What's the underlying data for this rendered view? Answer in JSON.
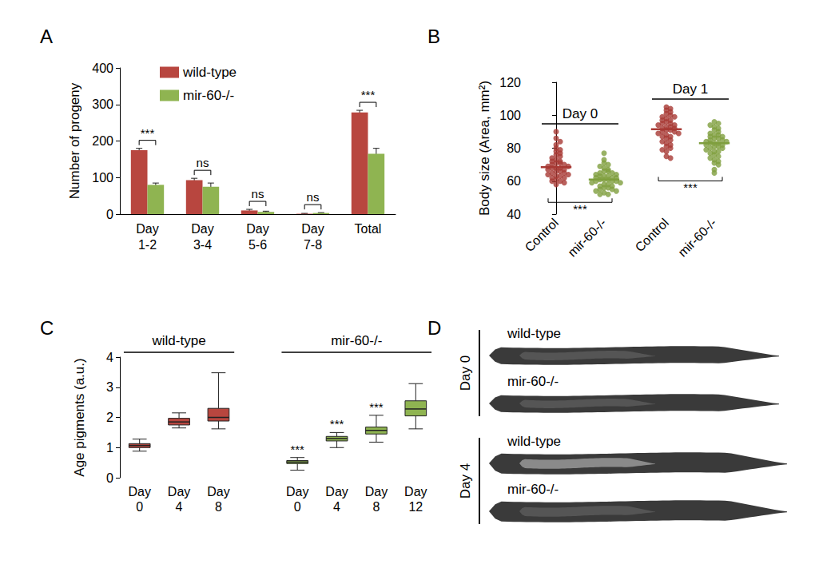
{
  "chart_data": [
    {
      "type": "bar",
      "title": "A",
      "ylabel": "Number of progeny",
      "categories": [
        "Day\n1-2",
        "Day\n3-4",
        "Day\n5-6",
        "Day\n7-8",
        "Total"
      ],
      "series": [
        {
          "name": "wild-type",
          "color": "#b8463f",
          "values": [
            175,
            93,
            10,
            1,
            278
          ],
          "errors": [
            5,
            5,
            3,
            1,
            6
          ]
        },
        {
          "name": "mir-60-/-",
          "color": "#8fb451",
          "values": [
            80,
            75,
            6,
            3,
            165
          ],
          "errors": [
            5,
            10,
            2,
            1,
            15
          ]
        }
      ],
      "annotations": [
        "***",
        "ns",
        "ns",
        "ns",
        "***"
      ],
      "ylim": [
        0,
        400
      ],
      "yticks": [
        0,
        100,
        200,
        300,
        400
      ],
      "grid": false,
      "legend": "upper left"
    },
    {
      "type": "scatter",
      "title": "B",
      "ylabel": "Body size (Area, mm²)",
      "ylim": [
        40,
        120
      ],
      "yticks": [
        40,
        60,
        80,
        100,
        120
      ],
      "grid": false,
      "groups": [
        {
          "label": "Day 0",
          "annotation": "***",
          "series": [
            {
              "name": "Control",
              "color": "#a83a35",
              "values": [
                90,
                86,
                84,
                82,
                80,
                79,
                78,
                77,
                76,
                75,
                74,
                73,
                72,
                72,
                71,
                71,
                70,
                70,
                69,
                69,
                68,
                68,
                68,
                67,
                67,
                66,
                66,
                65,
                65,
                64,
                64,
                63,
                63,
                62,
                62,
                61,
                60,
                60,
                59,
                58
              ]
            },
            {
              "name": "mir-60-/-",
              "color": "#7f9f3f",
              "values": [
                77,
                73,
                71,
                70,
                69,
                68,
                67,
                66,
                66,
                65,
                65,
                64,
                64,
                63,
                63,
                63,
                62,
                62,
                62,
                61,
                61,
                61,
                60,
                60,
                60,
                59,
                59,
                58,
                58,
                57,
                57,
                56,
                56,
                55,
                55,
                54,
                54,
                53,
                52,
                52
              ]
            }
          ]
        },
        {
          "label": "Day 1",
          "annotation": "***",
          "series": [
            {
              "name": "Control",
              "color": "#a83a35",
              "values": [
                105,
                104,
                103,
                102,
                101,
                100,
                99,
                99,
                98,
                97,
                97,
                96,
                95,
                95,
                94,
                94,
                93,
                93,
                92,
                92,
                91,
                91,
                90,
                90,
                89,
                89,
                88,
                87,
                87,
                86,
                85,
                84,
                83,
                82,
                81,
                80,
                79,
                78,
                75,
                74
              ]
            },
            {
              "name": "mir-60-/-",
              "color": "#7f9f3f",
              "values": [
                96,
                95,
                94,
                93,
                92,
                91,
                90,
                89,
                88,
                88,
                87,
                87,
                86,
                86,
                85,
                85,
                84,
                84,
                83,
                83,
                83,
                82,
                82,
                81,
                81,
                80,
                80,
                79,
                78,
                78,
                77,
                76,
                75,
                74,
                73,
                72,
                71,
                70,
                67,
                65
              ]
            }
          ]
        }
      ]
    },
    {
      "type": "boxplot",
      "title": "C",
      "ylabel": "Age pigments (a.u.)",
      "ylim": [
        0,
        4
      ],
      "yticks": [
        0,
        1,
        2,
        3,
        4
      ],
      "grid": false,
      "groups": [
        {
          "label": "wild-type",
          "color": "#b8463f",
          "categories": [
            "Day\n0",
            "Day\n4",
            "Day\n8"
          ],
          "boxes": [
            [
              0.88,
              1.0,
              1.07,
              1.13,
              1.28
            ],
            [
              1.65,
              1.75,
              1.85,
              1.97,
              2.15
            ],
            [
              1.62,
              1.88,
              2.0,
              2.3,
              3.48
            ]
          ],
          "annotations": [
            null,
            null,
            null
          ]
        },
        {
          "label": "mir-60-/-",
          "color": "#8fb451",
          "categories": [
            "Day\n0",
            "Day\n4",
            "Day\n8",
            "Day\n12"
          ],
          "boxes": [
            [
              0.25,
              0.47,
              0.52,
              0.57,
              0.67
            ],
            [
              1.0,
              1.22,
              1.3,
              1.37,
              1.5
            ],
            [
              1.18,
              1.45,
              1.57,
              1.68,
              2.07
            ],
            [
              1.62,
              2.05,
              2.28,
              2.55,
              3.12
            ]
          ],
          "annotations": [
            "***",
            "***",
            "***",
            null
          ]
        }
      ]
    }
  ],
  "image_panel": {
    "title": "D",
    "rows": [
      {
        "label": "Day 0",
        "items": [
          "wild-type",
          "mir-60-/-"
        ]
      },
      {
        "label": "Day 4",
        "items": [
          "wild-type",
          "mir-60-/-"
        ]
      }
    ]
  }
}
